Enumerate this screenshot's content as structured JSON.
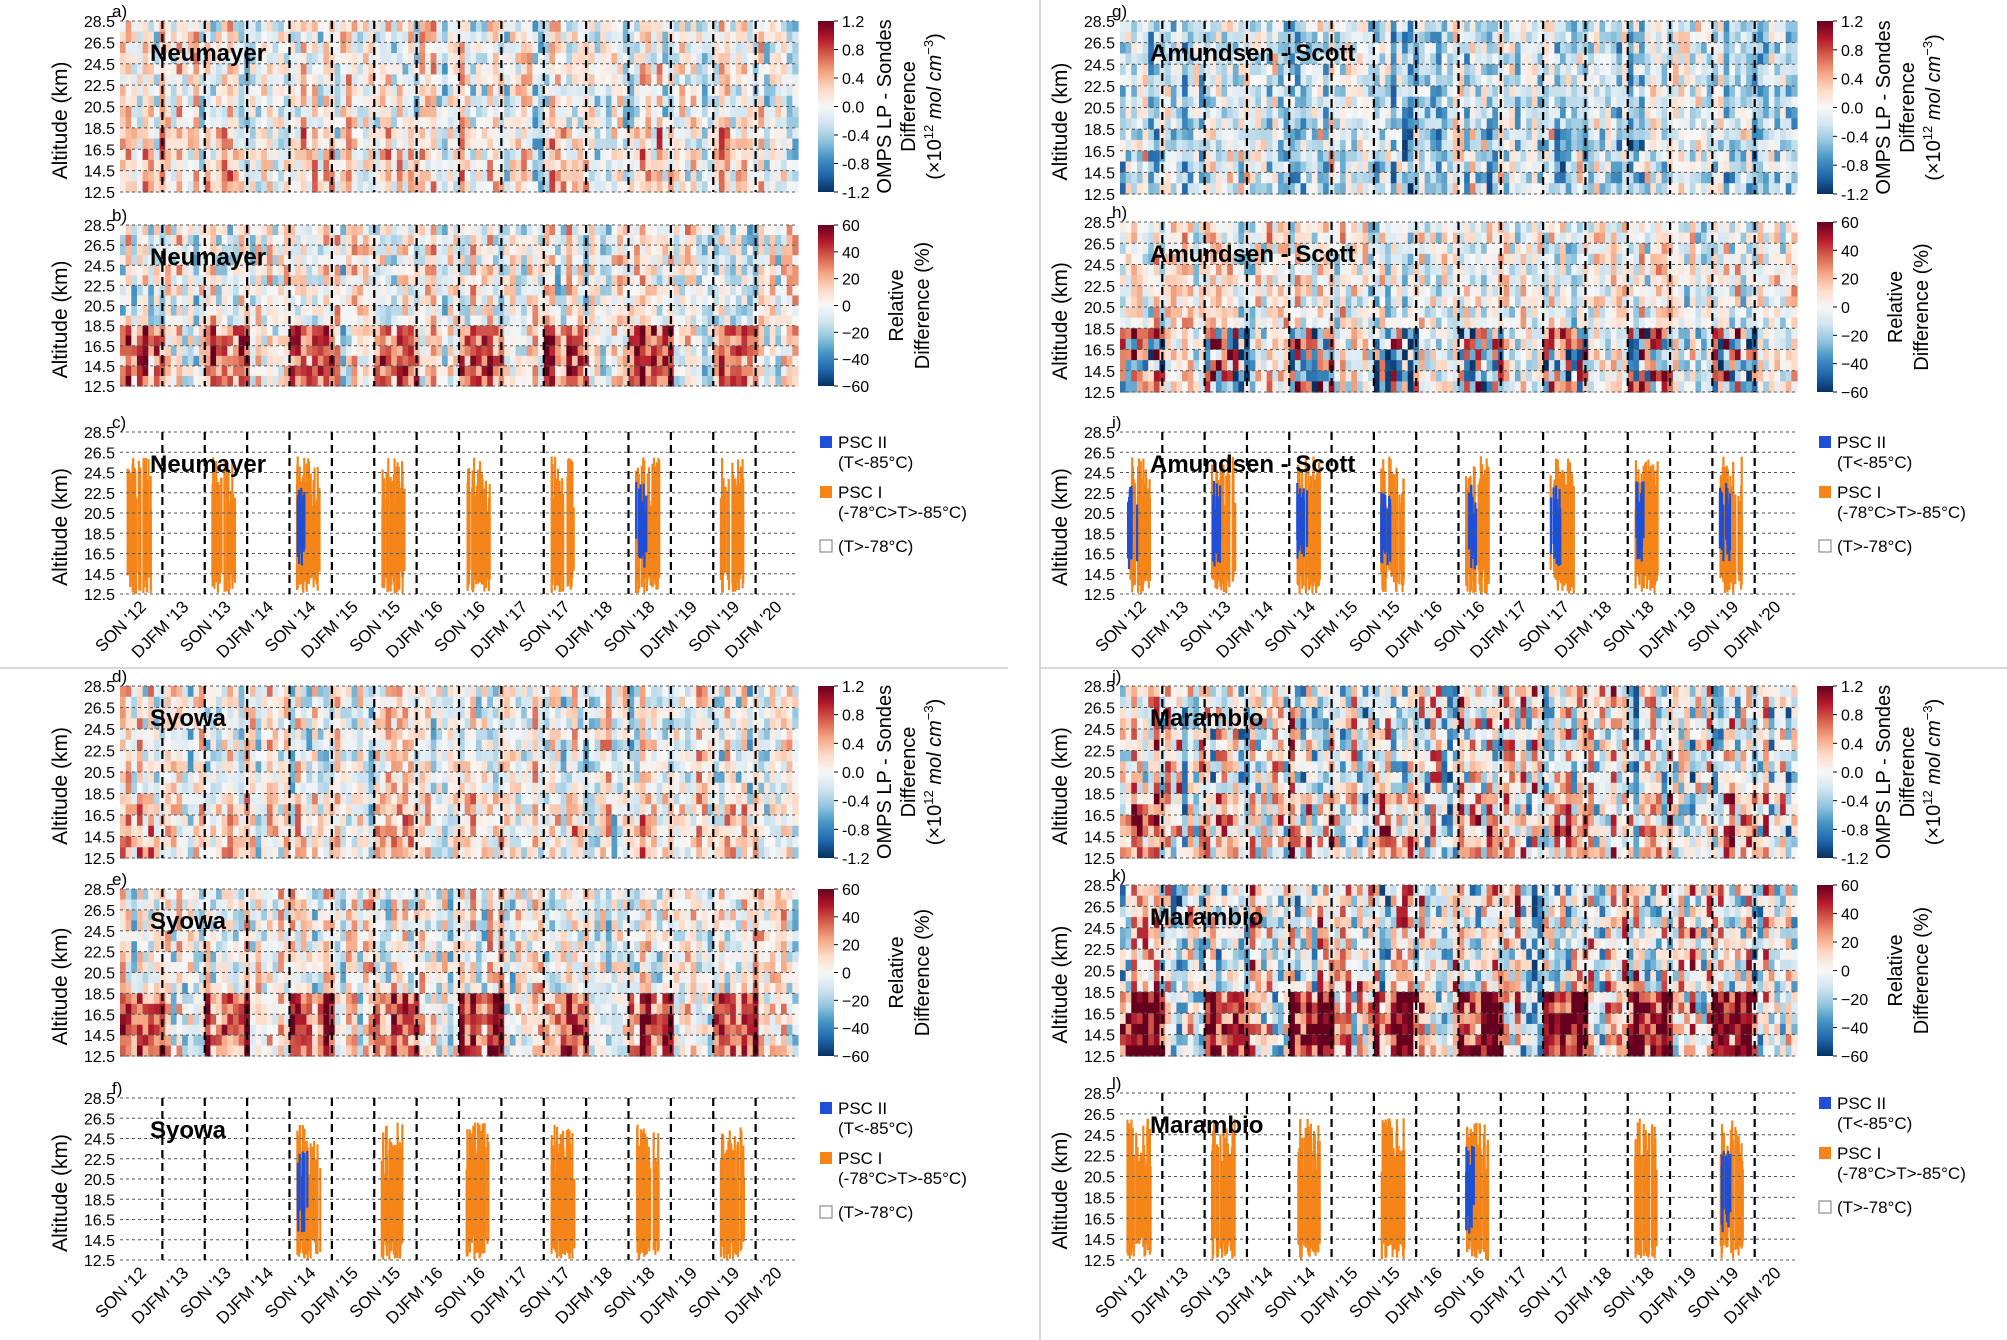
{
  "figure": {
    "ylabel": "Altitude (km)",
    "yticks": [
      "28.5",
      "26.5",
      "24.5",
      "22.5",
      "20.5",
      "18.5",
      "16.5",
      "14.5",
      "12.5"
    ],
    "xticks": [
      "SON '12",
      "DJFM '13",
      "SON '13",
      "DJFM '14",
      "SON '14",
      "DJFM '15",
      "SON '15",
      "DJFM '16",
      "SON '16",
      "DJFM '17",
      "SON '17",
      "DJFM '18",
      "SON '18",
      "DJFM '19",
      "SON '19",
      "DJFM '20"
    ],
    "colorbar_abs": {
      "ticks": [
        "1.2",
        "0.8",
        "0.4",
        "0.0",
        "-0.4",
        "-0.8",
        "-1.2"
      ],
      "label_line1": "OMPS LP - Sondes",
      "label_line2": "Difference",
      "label_line3": "(×10",
      "label_sup": "12",
      "label_tail": " mol cm",
      "label_sup2": "−3",
      "label_close": ")"
    },
    "colorbar_rel": {
      "ticks": [
        "60",
        "40",
        "20",
        "0",
        "−20",
        "−40",
        "−60"
      ],
      "label_line1": "Relative",
      "label_line2": "Difference (%)"
    },
    "psc_legend": [
      {
        "label1": "PSC II",
        "label2": "(T<-85°C)",
        "color": "#1f4fd6"
      },
      {
        "label1": "PSC I",
        "label2": "(-78°C>T>-85°C)",
        "color": "#f58518"
      },
      {
        "label1": "(T>-78°C)",
        "label2": "",
        "color": "#ffffff"
      }
    ],
    "colors": {
      "pos": "#67001f",
      "neg": "#053061",
      "orange": "#f58518",
      "blue": "#1f4fd6"
    }
  },
  "stations": [
    {
      "name": "Neumayer",
      "panels": [
        "a)",
        "b)",
        "c)"
      ],
      "psc_seasons": [
        0,
        2,
        4,
        6,
        8,
        10,
        12,
        14
      ],
      "blue_seasons": [
        4,
        12
      ]
    },
    {
      "name": "Amundsen - Scott",
      "panels": [
        "g)",
        "h)",
        "i)"
      ],
      "psc_seasons": [
        0,
        2,
        4,
        6,
        8,
        10,
        12,
        14
      ],
      "blue_seasons": [
        0,
        2,
        4,
        6,
        8,
        10,
        12,
        14
      ]
    },
    {
      "name": "Syowa",
      "panels": [
        "d)",
        "e)",
        "f)"
      ],
      "psc_seasons": [
        4,
        6,
        8,
        10,
        12,
        14
      ],
      "blue_seasons": [
        4
      ]
    },
    {
      "name": "Marambio",
      "panels": [
        "j)",
        "k)",
        "l)"
      ],
      "psc_seasons": [
        0,
        2,
        4,
        6,
        8,
        12,
        14
      ],
      "blue_seasons": [
        8,
        14
      ]
    }
  ]
}
